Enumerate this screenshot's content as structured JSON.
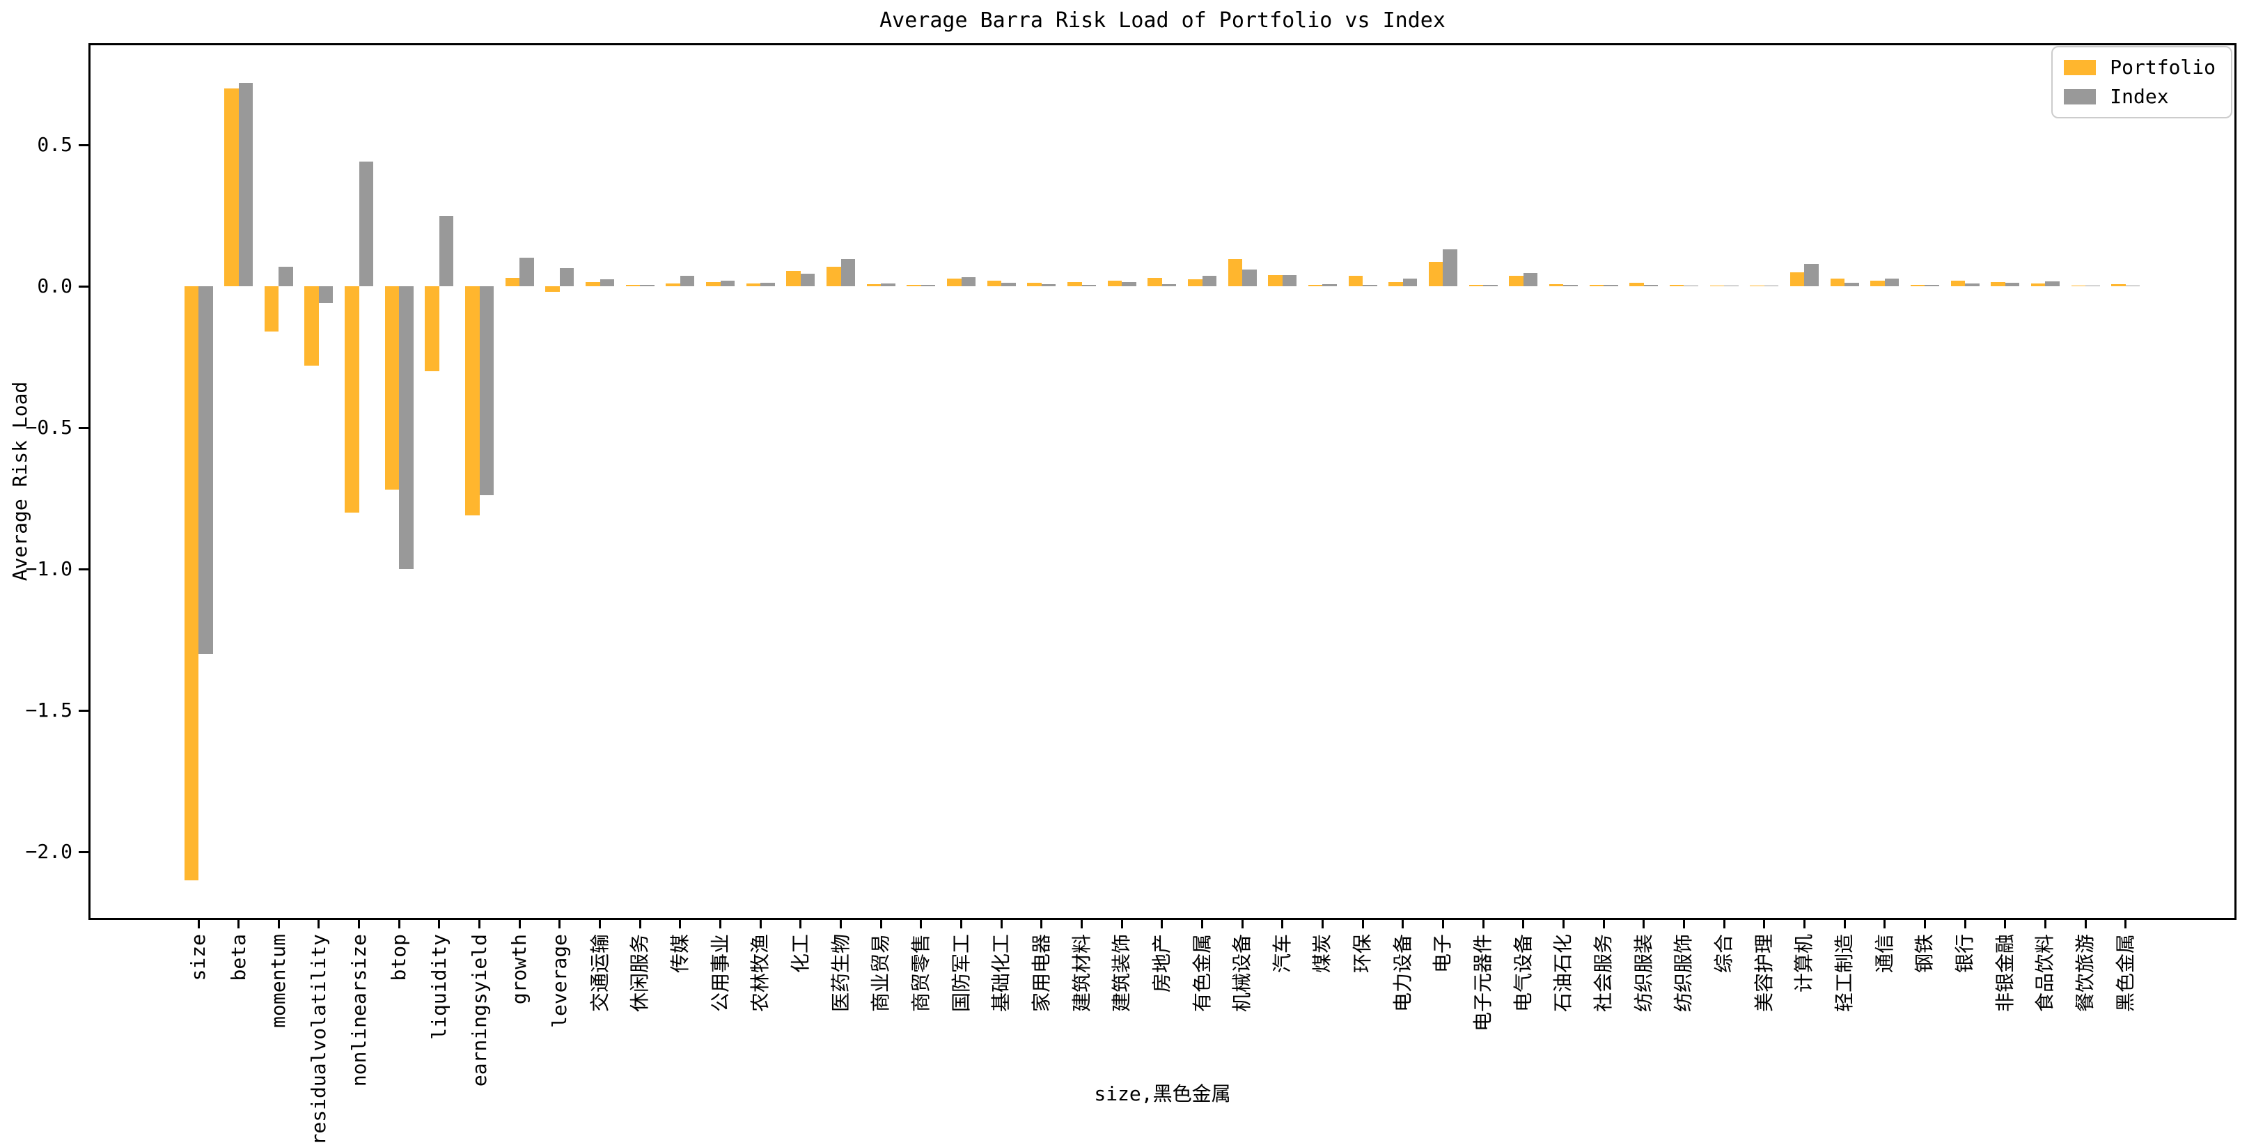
{
  "title": "Average Barra Risk Load of Portfolio vs Index",
  "axes": {
    "ylabel": "Average Risk Load",
    "xlabel": "size,黑色金属"
  },
  "legend": {
    "portfolio_label": "Portfolio",
    "index_label": "Index",
    "position": "upper right"
  },
  "colors": {
    "portfolio": "#FFB62E",
    "index": "#999999",
    "spine": "#000000",
    "legend_border": "#CCCCCC",
    "background": "#FFFFFF"
  },
  "chart_data": {
    "type": "bar",
    "title": "Average Barra Risk Load of Portfolio vs Index",
    "xlabel": "size,黑色金属",
    "ylabel": "Average Risk Load",
    "ylim": [
      -2.24,
      0.86
    ],
    "yticks": [
      0.5,
      0.0,
      -0.5,
      -1.0,
      -1.5,
      -2.0
    ],
    "grid": false,
    "legend_position": "upper right",
    "categories": [
      "size",
      "beta",
      "momentum",
      "residualvolatility",
      "nonlinearsize",
      "btop",
      "liquidity",
      "earningsyield",
      "growth",
      "leverage",
      "交通运输",
      "休闲服务",
      "传媒",
      "公用事业",
      "农林牧渔",
      "化工",
      "医药生物",
      "商业贸易",
      "商贸零售",
      "国防军工",
      "基础化工",
      "家用电器",
      "建筑材料",
      "建筑装饰",
      "房地产",
      "有色金属",
      "机械设备",
      "汽车",
      "煤炭",
      "环保",
      "电力设备",
      "电子",
      "电子元器件",
      "电气设备",
      "石油石化",
      "社会服务",
      "纺织服装",
      "纺织服饰",
      "综合",
      "美容护理",
      "计算机",
      "轻工制造",
      "通信",
      "钢铁",
      "银行",
      "非银金融",
      "食品饮料",
      "餐饮旅游",
      "黑色金属"
    ],
    "series": [
      {
        "name": "Portfolio",
        "color": "#FFB62E",
        "values": [
          -2.1,
          0.7,
          -0.16,
          -0.28,
          -0.8,
          -0.72,
          -0.3,
          -0.81,
          0.03,
          -0.02,
          0.015,
          0.004,
          0.01,
          0.016,
          0.01,
          0.055,
          0.07,
          0.008,
          0.004,
          0.028,
          0.02,
          0.012,
          0.016,
          0.02,
          0.03,
          0.025,
          0.095,
          0.04,
          0.005,
          0.038,
          0.015,
          0.085,
          0.004,
          0.038,
          0.008,
          0.005,
          0.013,
          0.005,
          0.002,
          0.003,
          0.05,
          0.028,
          0.02,
          0.004,
          0.02,
          0.016,
          0.01,
          0.002,
          0.008
        ]
      },
      {
        "name": "Index",
        "color": "#999999",
        "values": [
          -1.3,
          0.72,
          0.07,
          -0.06,
          0.44,
          -1.0,
          0.25,
          -0.74,
          0.1,
          0.065,
          0.025,
          0.005,
          0.038,
          0.02,
          0.012,
          0.045,
          0.095,
          0.01,
          0.004,
          0.033,
          0.012,
          0.008,
          0.005,
          0.014,
          0.008,
          0.038,
          0.06,
          0.04,
          0.007,
          0.006,
          0.028,
          0.13,
          0.004,
          0.046,
          0.005,
          0.004,
          0.005,
          0.003,
          0.002,
          0.003,
          0.08,
          0.012,
          0.026,
          0.004,
          0.011,
          0.012,
          0.017,
          0.002,
          0.003
        ]
      }
    ]
  }
}
